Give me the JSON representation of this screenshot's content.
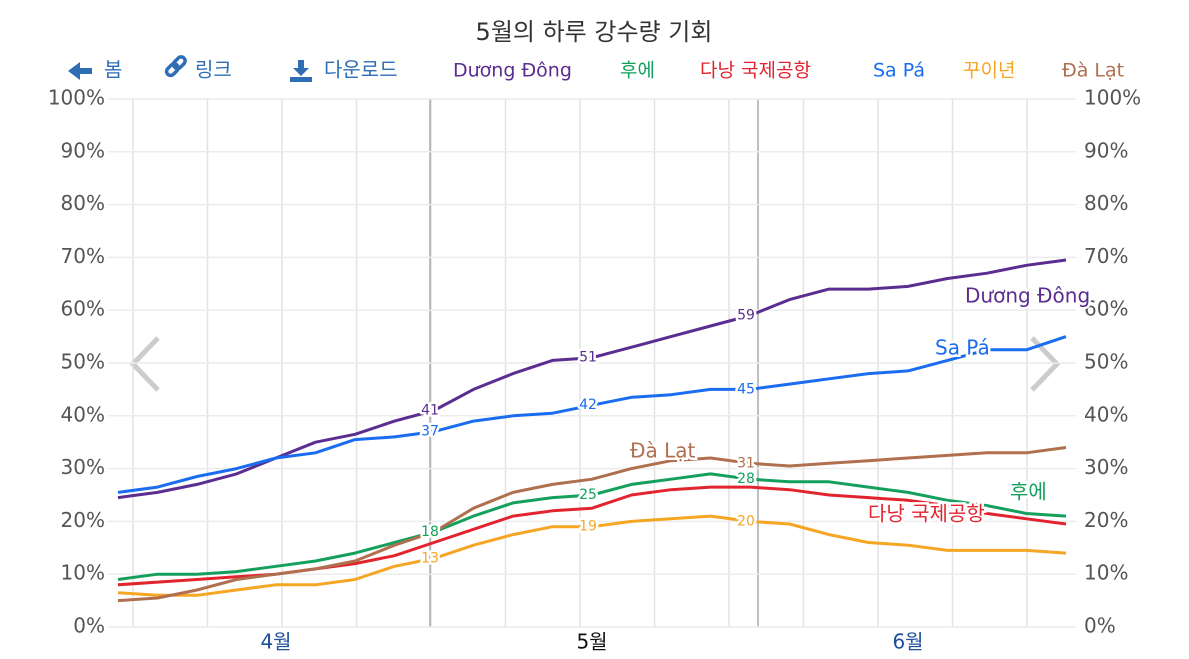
{
  "toolbar": [
    "봄",
    "링크",
    "다운로드"
  ],
  "chart_data": {
    "type": "line",
    "title": "5월의 하루 강수량 기회",
    "categories": [
      null,
      null,
      null,
      null,
      "4월",
      null,
      null,
      null,
      null,
      null,
      null,
      null,
      "5월",
      null,
      null,
      null,
      null,
      null,
      null,
      null,
      "6월",
      null,
      null,
      null,
      null
    ],
    "series": [
      {
        "name": "Dương Đông",
        "color": "#5b2d90",
        "values": [
          24.5,
          25.5,
          27,
          29,
          32,
          35,
          36.5,
          39,
          41,
          45,
          48,
          50.5,
          51,
          53,
          55,
          57,
          59,
          62,
          64,
          64,
          64.5,
          66,
          67,
          68.5,
          69.5
        ],
        "value_labels": [
          null,
          null,
          null,
          null,
          null,
          null,
          null,
          null,
          "41",
          null,
          null,
          null,
          "51",
          null,
          null,
          null,
          "59",
          null,
          null,
          null,
          null,
          null,
          null,
          null,
          null
        ]
      },
      {
        "name": "후에",
        "color": "#14a05c",
        "values": [
          9,
          10,
          10,
          10.5,
          11.5,
          12.5,
          14,
          16,
          18,
          21,
          23.5,
          24.5,
          25,
          27,
          28,
          29,
          28,
          27.5,
          27.5,
          26.5,
          25.5,
          24,
          23,
          21.5,
          21
        ],
        "value_labels": [
          null,
          null,
          null,
          null,
          null,
          null,
          null,
          null,
          "18",
          null,
          null,
          null,
          "25",
          null,
          null,
          null,
          "28",
          null,
          null,
          null,
          null,
          null,
          null,
          null,
          null
        ]
      },
      {
        "name": "다낭 국제공항",
        "color": "#e2242f",
        "values": [
          8,
          8.5,
          9,
          9.5,
          10,
          11,
          12,
          13.5,
          16,
          18.5,
          21,
          22,
          22.5,
          25,
          26,
          26.5,
          26.5,
          26,
          25,
          24.5,
          24,
          23,
          21.5,
          20.5,
          19.5
        ]
      },
      {
        "name": "Sa Pá",
        "color": "#1a6cf0",
        "values": [
          25.5,
          26.5,
          28.5,
          30,
          32,
          33,
          35.5,
          36,
          37,
          39,
          40,
          40.5,
          42,
          43.5,
          44,
          45,
          45,
          46,
          47,
          48,
          48.5,
          50.5,
          52.5,
          52.5,
          55
        ],
        "value_labels": [
          null,
          null,
          null,
          null,
          null,
          null,
          null,
          null,
          "37",
          null,
          null,
          null,
          "42",
          null,
          null,
          null,
          "45",
          null,
          null,
          null,
          null,
          null,
          null,
          null,
          null
        ]
      },
      {
        "name": "꾸이년",
        "color": "#f5a623",
        "values": [
          6.5,
          6,
          6,
          7,
          8,
          8,
          9,
          11.5,
          13,
          15.5,
          17.5,
          19,
          19,
          20,
          20.5,
          21,
          20,
          19.5,
          17.5,
          16,
          15.5,
          14.5,
          14.5,
          14.5,
          14
        ],
        "value_labels": [
          null,
          null,
          null,
          null,
          null,
          null,
          null,
          null,
          "13",
          null,
          null,
          null,
          "19",
          null,
          null,
          null,
          "20",
          null,
          null,
          null,
          null,
          null,
          null,
          null,
          null
        ]
      },
      {
        "name": "Đà Lạt",
        "color": "#b0704f",
        "values": [
          5,
          5.5,
          7,
          9,
          10,
          11,
          12.5,
          15.5,
          18,
          22.5,
          25.5,
          27,
          28,
          30,
          31.5,
          32,
          31,
          30.5,
          31,
          31.5,
          32,
          32.5,
          33,
          33,
          34
        ],
        "value_labels": [
          null,
          null,
          null,
          null,
          null,
          null,
          null,
          null,
          null,
          null,
          null,
          null,
          null,
          null,
          null,
          null,
          "31",
          null,
          null,
          null,
          null,
          null,
          null,
          null,
          null
        ]
      }
    ],
    "ylim": [
      0,
      100
    ],
    "yticks": [
      {
        "value": 0,
        "label": "0%"
      },
      {
        "value": 10,
        "label": "10%"
      },
      {
        "value": 20,
        "label": "20%"
      },
      {
        "value": 30,
        "label": "30%"
      },
      {
        "value": 40,
        "label": "40%"
      },
      {
        "value": 50,
        "label": "50%"
      },
      {
        "value": 60,
        "label": "60%"
      },
      {
        "value": 70,
        "label": "70%"
      },
      {
        "value": 80,
        "label": "80%"
      },
      {
        "value": 90,
        "label": "90%"
      },
      {
        "value": 100,
        "label": "100%"
      }
    ],
    "grid": true
  }
}
